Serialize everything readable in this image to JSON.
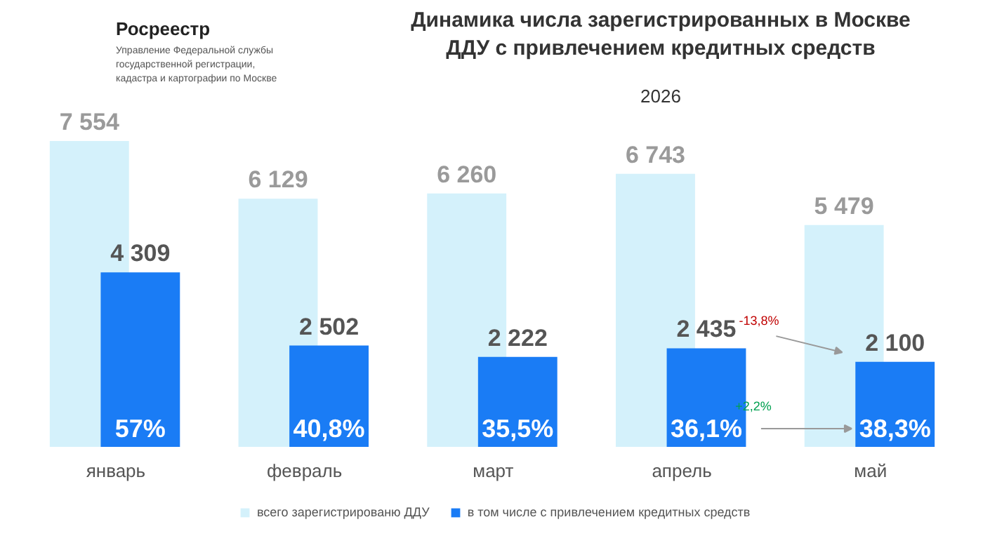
{
  "chart_data": {
    "type": "bar",
    "title": "Динамика числа зарегистрированных в Москве\nДДУ с привлечением кредитных средств",
    "subtitle": "2026",
    "categories": [
      "январь",
      "февраль",
      "март",
      "апрель",
      "май"
    ],
    "series": [
      {
        "name": "всего зарегистрированю ДДУ",
        "color": "#d4f1fb",
        "values": [
          7554,
          6129,
          6260,
          6743,
          5479
        ]
      },
      {
        "name": "в том числе с привлечением кредитных средств",
        "color": "#1a7cf5",
        "values": [
          4309,
          2502,
          2222,
          2435,
          2100
        ]
      }
    ],
    "data_labels": true,
    "legend": "bottom",
    "annotations": [
      "Росреестр",
      "Управление Федеральной службы\nгосударственной регистрации,\nкадастра и картографии по Москве",
      "-13,8%",
      "+2,2%",
      "57%",
      "40,8%",
      "35,5%",
      "36,1%",
      "38,3%"
    ]
  }
}
